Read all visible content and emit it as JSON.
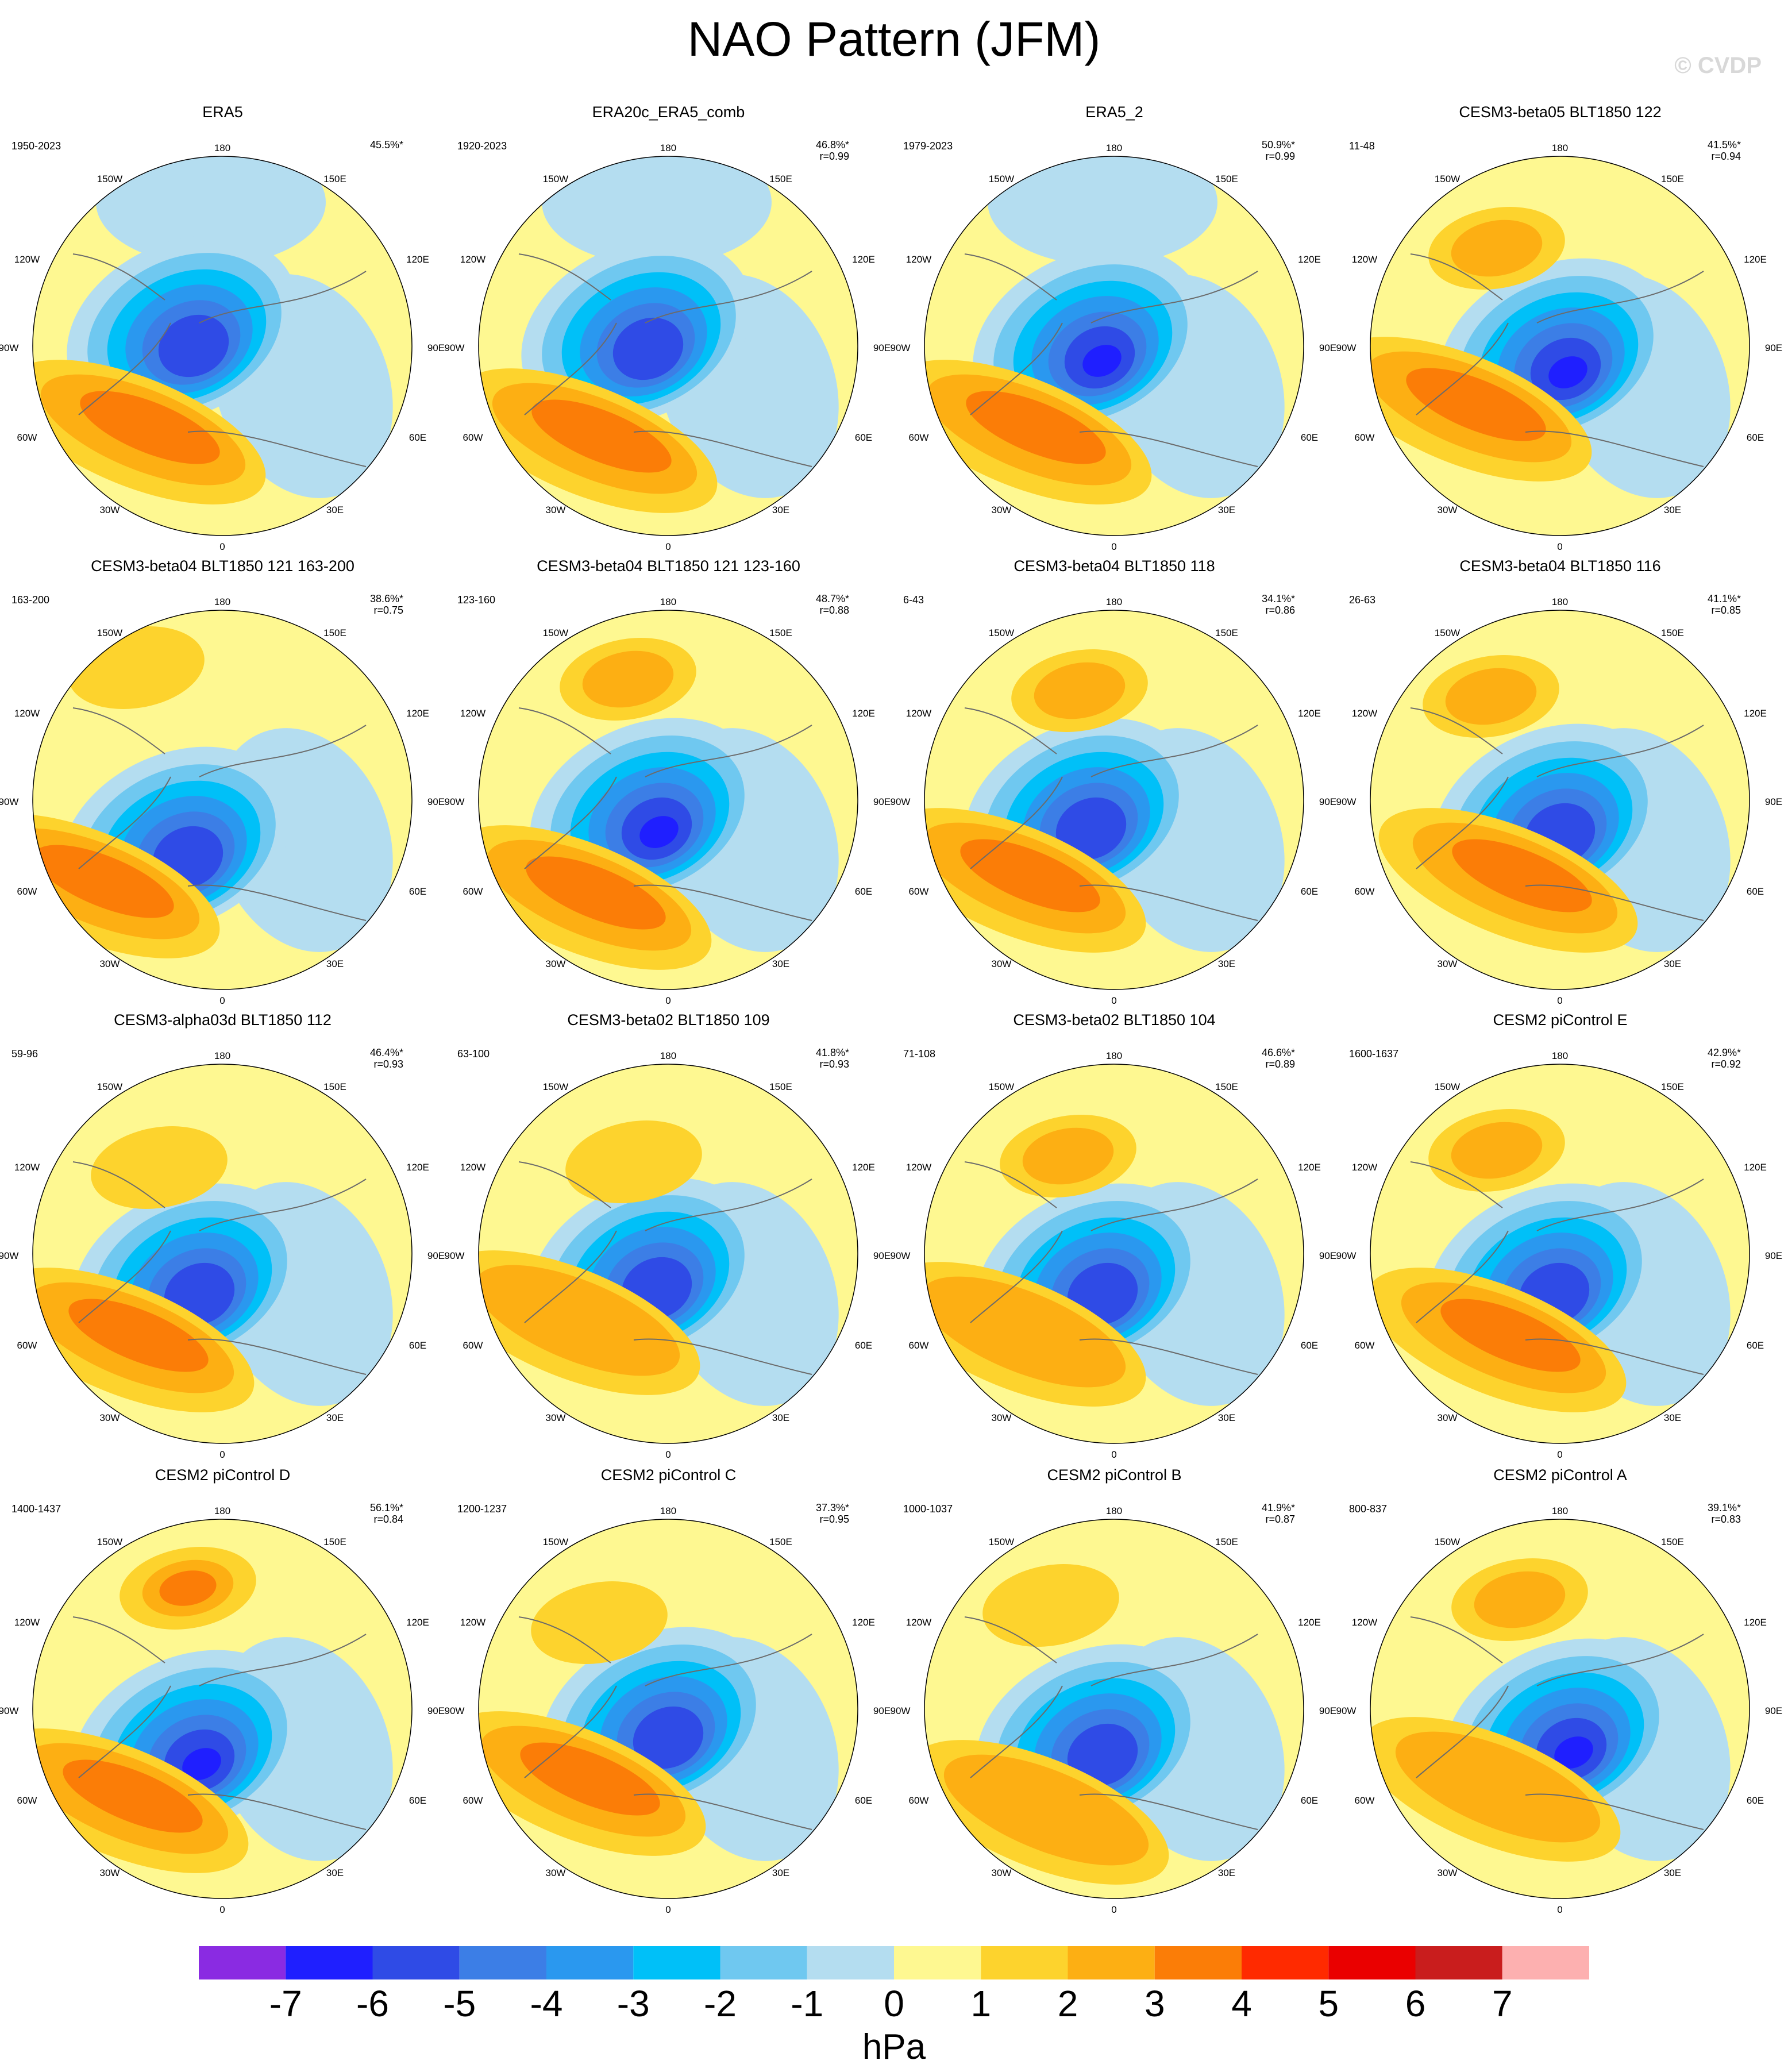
{
  "title": "NAO Pattern (JFM)",
  "copyright": "© CVDP",
  "units": "hPa",
  "colorbar": {
    "ticks": [
      "-7",
      "-6",
      "-5",
      "-4",
      "-3",
      "-2",
      "-1",
      "0",
      "1",
      "2",
      "3",
      "4",
      "5",
      "6",
      "7"
    ],
    "colors": [
      "#8a2be2",
      "#1f1fff",
      "#2f4be6",
      "#3c7ee6",
      "#2a98ef",
      "#00c0f8",
      "#6fc8f0",
      "#b4ddf0",
      "#fef891",
      "#fdd32d",
      "#fdaf13",
      "#fb7d07",
      "#ff2a00",
      "#ea0000",
      "#c91d1d",
      "#fdb0b0"
    ]
  },
  "longitude_labels": {
    "top": "180",
    "bottom": "0",
    "w150": "150W",
    "e150": "150E",
    "w120": "120W",
    "e120": "120E",
    "w90": "90W",
    "e90": "90E",
    "w60": "60W",
    "e60": "60E",
    "w30": "30W",
    "e30": "30E"
  },
  "panels": [
    {
      "title": "ERA5",
      "period": "1950-2023",
      "pct": "45.5%*",
      "r": ""
    },
    {
      "title": "ERA20c_ERA5_comb",
      "period": "1920-2023",
      "pct": "46.8%*",
      "r": "r=0.99"
    },
    {
      "title": "ERA5_2",
      "period": "1979-2023",
      "pct": "50.9%*",
      "r": "r=0.99"
    },
    {
      "title": "CESM3-beta05 BLT1850 122",
      "period": "11-48",
      "pct": "41.5%*",
      "r": "r=0.94"
    },
    {
      "title": "CESM3-beta04 BLT1850 121 163-200",
      "period": "163-200",
      "pct": "38.6%*",
      "r": "r=0.75"
    },
    {
      "title": "CESM3-beta04 BLT1850 121 123-160",
      "period": "123-160",
      "pct": "48.7%*",
      "r": "r=0.88"
    },
    {
      "title": "CESM3-beta04 BLT1850 118",
      "period": "6-43",
      "pct": "34.1%*",
      "r": "r=0.86"
    },
    {
      "title": "CESM3-beta04 BLT1850 116",
      "period": "26-63",
      "pct": "41.1%*",
      "r": "r=0.85"
    },
    {
      "title": "CESM3-alpha03d BLT1850 112",
      "period": "59-96",
      "pct": "46.4%*",
      "r": "r=0.93"
    },
    {
      "title": "CESM3-beta02 BLT1850 109",
      "period": "63-100",
      "pct": "41.8%*",
      "r": "r=0.93"
    },
    {
      "title": "CESM3-beta02 BLT1850 104",
      "period": "71-108",
      "pct": "46.6%*",
      "r": "r=0.89"
    },
    {
      "title": "CESM2 piControl E",
      "period": "1600-1637",
      "pct": "42.9%*",
      "r": "r=0.92"
    },
    {
      "title": "CESM2 piControl D",
      "period": "1400-1437",
      "pct": "56.1%*",
      "r": "r=0.84"
    },
    {
      "title": "CESM2 piControl C",
      "period": "1200-1237",
      "pct": "37.3%*",
      "r": "r=0.95"
    },
    {
      "title": "CESM2 piControl B",
      "period": "1000-1037",
      "pct": "41.9%*",
      "r": "r=0.87"
    },
    {
      "title": "CESM2 piControl A",
      "period": "800-837",
      "pct": "39.1%*",
      "r": "r=0.83"
    }
  ]
}
